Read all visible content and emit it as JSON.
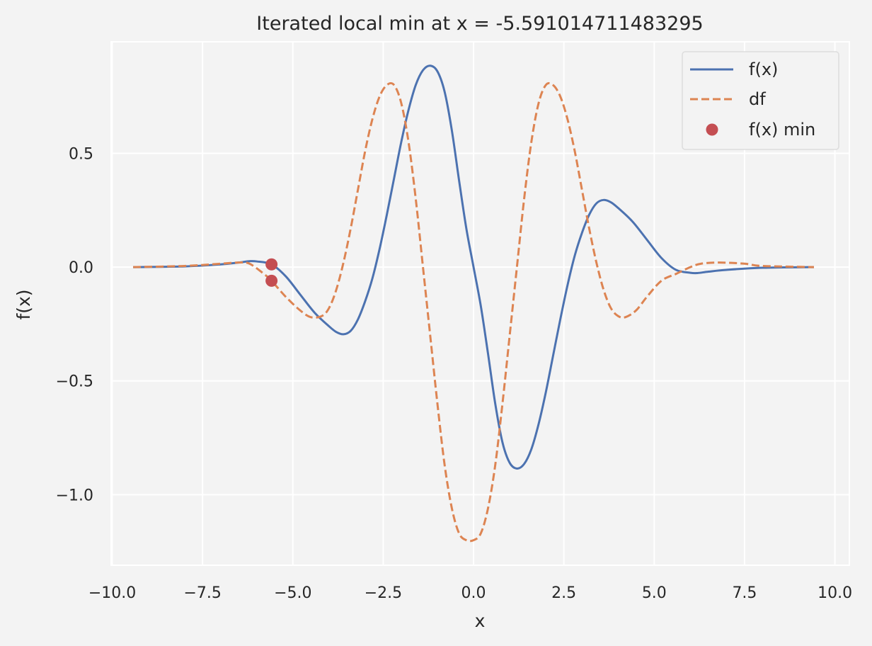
{
  "chart_data": {
    "type": "line",
    "title": "Iterated local min at x = -5.591014711483295",
    "xlabel": "x",
    "ylabel": "f(x)",
    "xlim": [
      -10.03,
      10.4
    ],
    "ylim": [
      -1.31,
      0.99
    ],
    "grid": true,
    "legend_position": "top-right",
    "xticks": [
      -10.0,
      -7.5,
      -5.0,
      -2.5,
      0.0,
      2.5,
      5.0,
      7.5,
      10.0
    ],
    "xtick_labels": [
      "−10.0",
      "−7.5",
      "−5.0",
      "−2.5",
      "0.0",
      "2.5",
      "5.0",
      "7.5",
      "10.0"
    ],
    "yticks": [
      0.5,
      0.0,
      -0.5,
      -1.0
    ],
    "ytick_labels": [
      "0.5",
      "0.0",
      "−0.5",
      "−1.0"
    ],
    "series": [
      {
        "name": "f(x)",
        "style": "solid",
        "color": "#4c72b0",
        "x": [
          -9.42,
          -8.0,
          -7.0,
          -6.5,
          -6.2,
          -6.0,
          -5.591,
          -5.2,
          -4.8,
          -4.4,
          -4.0,
          -3.8,
          -3.6,
          -3.4,
          -3.2,
          -3.0,
          -2.8,
          -2.6,
          -2.4,
          -2.2,
          -2.0,
          -1.8,
          -1.6,
          -1.4,
          -1.2,
          -1.0,
          -0.8,
          -0.6,
          -0.4,
          -0.2,
          0.0,
          0.2,
          0.4,
          0.6,
          0.8,
          1.0,
          1.2,
          1.4,
          1.6,
          1.8,
          2.0,
          2.2,
          2.4,
          2.6,
          2.8,
          3.0,
          3.2,
          3.4,
          3.6,
          3.8,
          4.0,
          4.4,
          4.8,
          5.2,
          5.6,
          6.0,
          6.2,
          6.5,
          7.0,
          8.0,
          9.42
        ],
        "values": [
          0.0,
          0.003,
          0.012,
          0.02,
          0.026,
          0.025,
          0.012,
          -0.04,
          -0.12,
          -0.2,
          -0.26,
          -0.285,
          -0.295,
          -0.28,
          -0.23,
          -0.15,
          -0.05,
          0.08,
          0.23,
          0.39,
          0.55,
          0.69,
          0.8,
          0.865,
          0.885,
          0.86,
          0.77,
          0.6,
          0.38,
          0.17,
          0.0,
          -0.17,
          -0.38,
          -0.6,
          -0.77,
          -0.86,
          -0.885,
          -0.865,
          -0.8,
          -0.69,
          -0.55,
          -0.39,
          -0.23,
          -0.08,
          0.05,
          0.15,
          0.23,
          0.28,
          0.295,
          0.285,
          0.26,
          0.2,
          0.12,
          0.04,
          -0.012,
          -0.025,
          -0.026,
          -0.02,
          -0.012,
          -0.003,
          0.0
        ]
      },
      {
        "name": "df",
        "style": "dashed",
        "color": "#dd8452",
        "x": [
          -9.42,
          -8.0,
          -7.0,
          -6.5,
          -6.2,
          -5.8,
          -5.591,
          -5.2,
          -4.8,
          -4.5,
          -4.2,
          -4.0,
          -3.8,
          -3.6,
          -3.4,
          -3.2,
          -3.0,
          -2.8,
          -2.6,
          -2.4,
          -2.2,
          -2.0,
          -1.8,
          -1.6,
          -1.4,
          -1.2,
          -1.0,
          -0.8,
          -0.6,
          -0.4,
          -0.2,
          0.0,
          0.2,
          0.4,
          0.6,
          0.8,
          1.0,
          1.2,
          1.4,
          1.6,
          1.8,
          2.0,
          2.2,
          2.4,
          2.6,
          2.8,
          3.0,
          3.2,
          3.4,
          3.6,
          3.8,
          4.0,
          4.2,
          4.5,
          4.8,
          5.2,
          5.6,
          6.0,
          6.3,
          6.8,
          7.5,
          8.0,
          9.42
        ],
        "values": [
          0.0,
          0.005,
          0.015,
          0.02,
          0.015,
          -0.03,
          -0.06,
          -0.13,
          -0.19,
          -0.22,
          -0.215,
          -0.18,
          -0.1,
          0.02,
          0.17,
          0.34,
          0.51,
          0.65,
          0.75,
          0.8,
          0.8,
          0.72,
          0.55,
          0.3,
          0.0,
          -0.3,
          -0.6,
          -0.87,
          -1.06,
          -1.17,
          -1.2,
          -1.2,
          -1.17,
          -1.06,
          -0.87,
          -0.6,
          -0.3,
          0.0,
          0.3,
          0.55,
          0.72,
          0.8,
          0.8,
          0.75,
          0.65,
          0.51,
          0.34,
          0.17,
          0.02,
          -0.1,
          -0.18,
          -0.215,
          -0.22,
          -0.19,
          -0.13,
          -0.06,
          -0.03,
          0.0,
          0.015,
          0.02,
          0.015,
          0.005,
          0.0
        ]
      },
      {
        "name": "f(x) min",
        "style": "marker",
        "color": "#c44e52",
        "x": [
          -5.591014711483295,
          -5.591014711483295
        ],
        "values": [
          0.012,
          -0.06
        ]
      }
    ]
  }
}
